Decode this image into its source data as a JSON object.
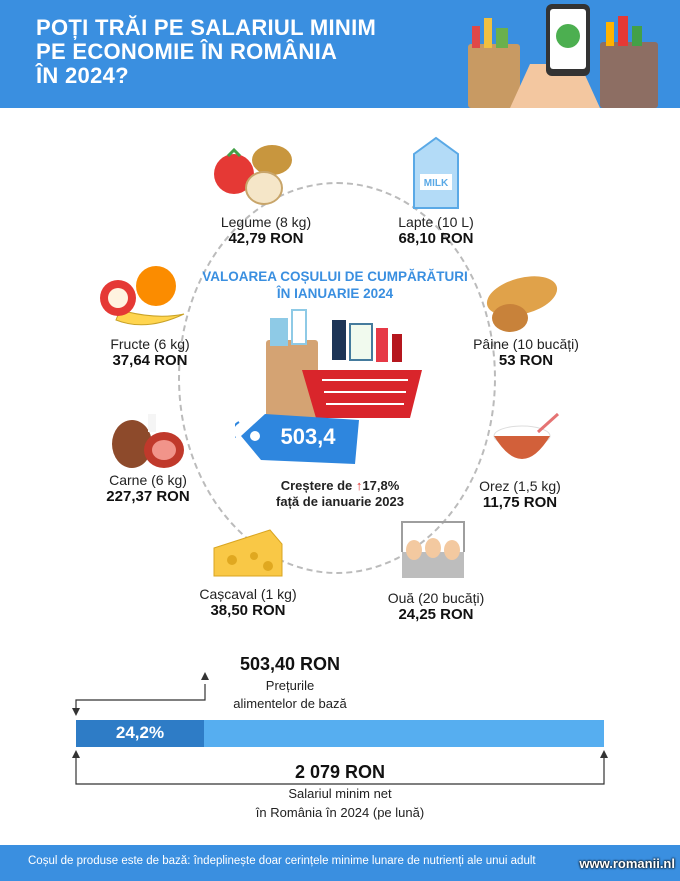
{
  "header": {
    "title_lines": [
      "POȚI TRĂI PE SALARIUL MINIM",
      "PE ECONOMIE ÎN ROMÂNIA",
      "ÎN 2024?"
    ]
  },
  "basket": {
    "title_lines": [
      "VALOAREA COȘULUI DE CUMPĂRĂTURI",
      "ÎN IANUARIE 2024"
    ],
    "value": "503,4",
    "growth_prefix": "Creștere de ",
    "growth_arrow": "↑",
    "growth_value": "17,8%",
    "growth_suffix": "față de ianuarie 2023"
  },
  "items": {
    "legume": {
      "name": "Legume (8 kg)",
      "price": "42,79 RON"
    },
    "lapte": {
      "name": "Lapte (10 L)",
      "price": "68,10 RON",
      "icon_text": "MILK"
    },
    "fructe": {
      "name": "Fructe (6 kg)",
      "price": "37,64 RON"
    },
    "paine": {
      "name": "Pâine (10 bucăți)",
      "price": "53 RON"
    },
    "carne": {
      "name": "Carne (6 kg)",
      "price": "227,37 RON"
    },
    "orez": {
      "name": "Orez (1,5 kg)",
      "price": "11,75 RON"
    },
    "cascaval": {
      "name": "Cașcaval (1 kg)",
      "price": "38,50 RON"
    },
    "oua": {
      "name": "Ouă (20 bucăți)",
      "price": "24,25 RON"
    }
  },
  "comparison": {
    "basket_total": "503,40 RON",
    "basket_label_lines": [
      "Prețurile",
      "alimentelor de bază"
    ],
    "share_percent_label": "24,2%",
    "share_fraction": 0.242,
    "salary_total": "2 079 RON",
    "salary_label_lines": [
      "Salariul minim net",
      "în România în 2024 (pe lună)"
    ]
  },
  "footer": {
    "note": "Coșul de produse este de bază: îndeplinește doar cerințele minime lunare de nutrienți ale unui adult",
    "watermark": "www.romanii.nl"
  },
  "colors": {
    "accent": "#3a8fe0",
    "bar_light": "#56aef0",
    "bar_dark": "#2e7cc6",
    "basket_red": "#d9252b"
  }
}
